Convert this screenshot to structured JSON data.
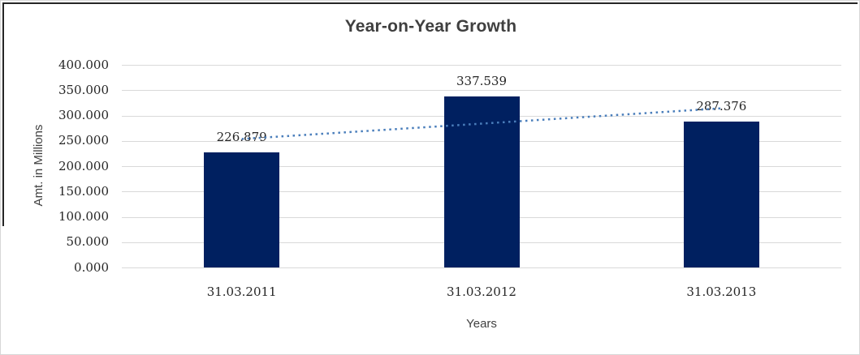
{
  "chart_data": {
    "type": "bar",
    "title": "Year-on-Year Growth",
    "xlabel": "Years",
    "ylabel": "Amt. in Millions",
    "categories": [
      "31.03.2011",
      "31.03.2012",
      "31.03.2013"
    ],
    "values": [
      226.879,
      337.539,
      287.376
    ],
    "data_labels": [
      "226.879",
      "337.539",
      "287.376"
    ],
    "ylim": [
      0,
      400
    ],
    "ytick_labels": [
      "400.000",
      "350.000",
      "300.000",
      "250.000",
      "200.000",
      "150.000",
      "100.000",
      "50.000",
      "0.000"
    ],
    "grid": "horizontal",
    "legend": "none",
    "bar_color": "#002060",
    "gridline_color": "#d9d9d9",
    "trendline": {
      "style": "dotted",
      "color": "#4a7ebb",
      "start_value": 253.7,
      "end_value": 314.2
    }
  }
}
